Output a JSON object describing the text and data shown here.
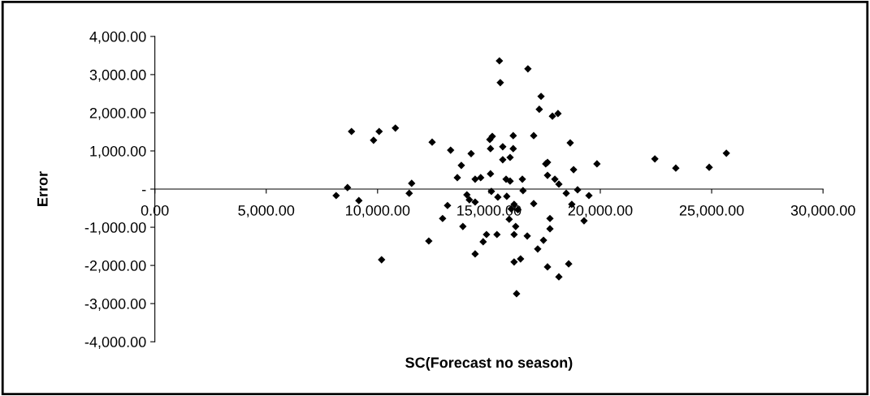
{
  "chart_data": {
    "type": "scatter",
    "xlabel": "SC(Forecast no season)",
    "ylabel": "Error",
    "marker": "diamond",
    "grid": false,
    "legend": false,
    "xlim": [
      0,
      30000
    ],
    "xticks": [
      {
        "value": 0,
        "label": "0.00"
      },
      {
        "value": 5000,
        "label": "5,000.00"
      },
      {
        "value": 10000,
        "label": "10,000.00"
      },
      {
        "value": 15000,
        "label": "15,000.00"
      },
      {
        "value": 20000,
        "label": "20,000.00"
      },
      {
        "value": 25000,
        "label": "25,000.00"
      },
      {
        "value": 30000,
        "label": "30,000.00"
      }
    ],
    "ylim": [
      -4000,
      4000
    ],
    "yticks": [
      {
        "value": -4000,
        "label": "-4,000.00"
      },
      {
        "value": -3000,
        "label": "-3,000.00"
      },
      {
        "value": -2000,
        "label": "-2,000.00"
      },
      {
        "value": -1000,
        "label": "-1,000.00"
      },
      {
        "value": 0,
        "label": "-"
      },
      {
        "value": 1000,
        "label": "1,000.00"
      },
      {
        "value": 2000,
        "label": "2,000.00"
      },
      {
        "value": 3000,
        "label": "3,000.00"
      },
      {
        "value": 4000,
        "label": "4,000.00"
      }
    ],
    "series": [
      {
        "color": "#000000",
        "x": [
          8830,
          9820,
          10070,
          10800,
          8650,
          8140,
          9160,
          10180,
          15470,
          16750,
          15510,
          17340,
          17260,
          17850,
          18100,
          12450,
          13280,
          14200,
          13760,
          15150,
          15040,
          16090,
          17010,
          15620,
          16090,
          15070,
          15620,
          15950,
          18650,
          19850,
          18800,
          17550,
          17630,
          17630,
          17960,
          18140,
          13580,
          14380,
          14630,
          15070,
          15770,
          15950,
          16500,
          11530,
          11420,
          15110,
          16530,
          18470,
          18980,
          19490,
          14010,
          15400,
          15800,
          14120,
          14380,
          13140,
          17010,
          18720,
          16130,
          16000,
          16300,
          12920,
          13830,
          15910,
          16200,
          17740,
          17740,
          19270,
          12300,
          14890,
          14740,
          15360,
          16130,
          16720,
          17450,
          17190,
          14380,
          16130,
          16420,
          17630,
          18580,
          18140,
          16240,
          22450,
          23390,
          24890,
          25660
        ],
        "values": [
          1510,
          1280,
          1510,
          1600,
          40,
          -170,
          -300,
          -1850,
          3360,
          3150,
          2790,
          2430,
          2090,
          1910,
          1980,
          1230,
          1020,
          930,
          620,
          1380,
          1300,
          1400,
          1400,
          1110,
          1060,
          1060,
          770,
          830,
          1210,
          660,
          510,
          660,
          700,
          360,
          260,
          130,
          300,
          260,
          300,
          400,
          260,
          210,
          260,
          150,
          -110,
          -60,
          -40,
          -110,
          -20,
          -170,
          -150,
          -210,
          -190,
          -280,
          -340,
          -430,
          -380,
          -400,
          -400,
          -520,
          -540,
          -770,
          -980,
          -790,
          -980,
          -770,
          -1040,
          -830,
          -1360,
          -1190,
          -1380,
          -1190,
          -1190,
          -1230,
          -1340,
          -1570,
          -1700,
          -1910,
          -1830,
          -2040,
          -1960,
          -2300,
          -2740,
          790,
          550,
          570,
          940
        ]
      }
    ]
  }
}
